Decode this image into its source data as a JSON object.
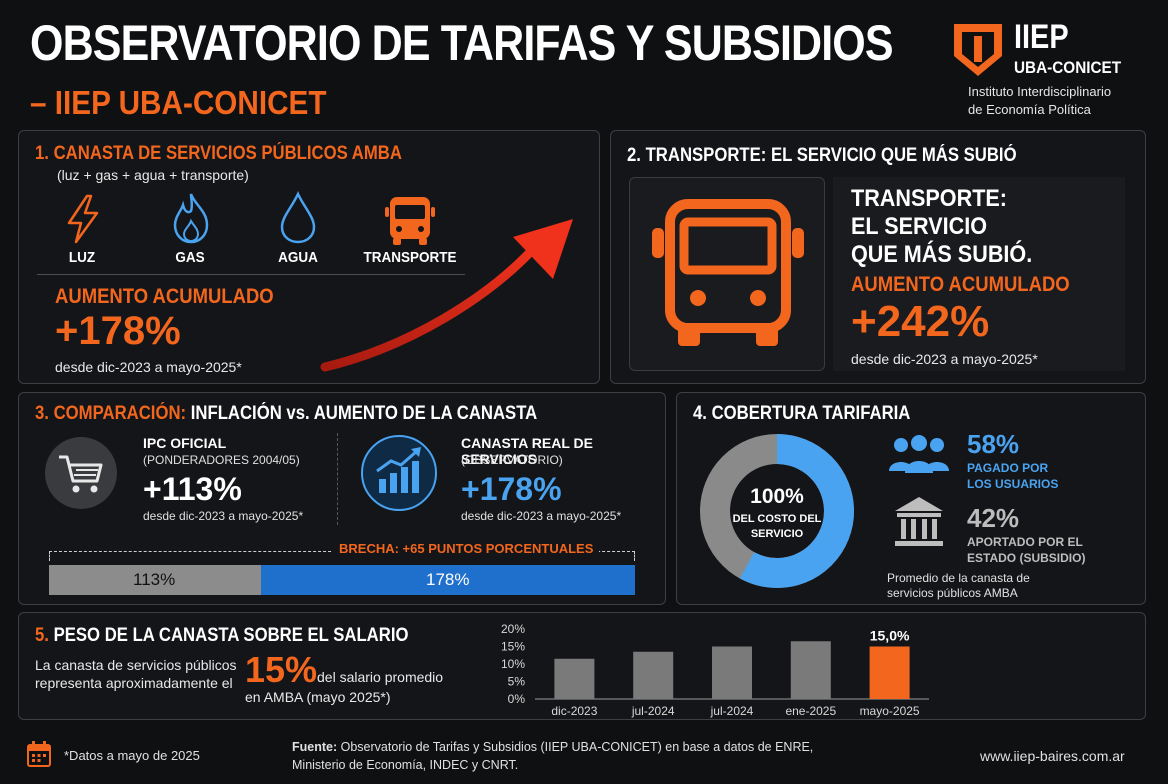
{
  "header": {
    "title": "OBSERVATORIO DE TARIFAS Y SUBSIDIOS",
    "subtitle": "– IIEP UBA-CONICET",
    "logo_name": "IIEP",
    "logo_sub": "UBA-CONICET",
    "logo_desc_line1": "Instituto Interdisciplinario",
    "logo_desc_line2": "de Economía Política"
  },
  "panel1": {
    "title": "1. CANASTA DE SERVICIOS PÚBLICOS AMBA",
    "subtitle": "(luz + gas + agua + transporte)",
    "items": [
      {
        "label": "LUZ",
        "icon": "lightning-icon"
      },
      {
        "label": "GAS",
        "icon": "flame-icon"
      },
      {
        "label": "AGUA",
        "icon": "water-drop-icon"
      },
      {
        "label": "TRANSPORTE",
        "icon": "bus-icon"
      }
    ],
    "metric_label": "AUMENTO ACUMULADO",
    "metric_value": "+178%",
    "metric_note": "desde dic-2023 a mayo-2025*"
  },
  "panel2": {
    "title": "2. TRANSPORTE: EL SERVICIO QUE MÁS SUBIÓ",
    "heading_line1": "TRANSPORTE:",
    "heading_line2": "EL SERVICIO",
    "heading_line3": "QUE MÁS SUBIÓ.",
    "metric_label": "AUMENTO ACUMULADO",
    "metric_value": "+242%",
    "metric_note": "desde dic-2023 a mayo-2025*"
  },
  "panel3": {
    "title_prefix": "3. COMPARACIÓN:",
    "title_rest": "INFLACIÓN vs. AUMENTO DE LA CANASTA",
    "left_label": "IPC OFICIAL",
    "left_sub": "(PONDERADORES 2004/05)",
    "left_value": "+113%",
    "left_note": "desde dic-2023 a mayo-2025*",
    "right_label": "CANASTA REAL DE SERVICIOS",
    "right_sub": "(OBSERVATORIO)",
    "right_value": "+178%",
    "right_note": "desde dic-2023 a mayo-2025*",
    "gap_label": "BRECHA: +65 PUNTOS PORCENTUALES",
    "bar_left_label": "113%",
    "bar_right_label": "178%",
    "bar_left_value": 113,
    "bar_right_value": 178
  },
  "panel4": {
    "title": "4. COBERTURA TARIFARIA",
    "donut_center_value": "100%",
    "donut_center_line1": "DEL COSTO DEL",
    "donut_center_line2": "SERVICIO",
    "users_pct": "58%",
    "users_label_line1": "PAGADO POR",
    "users_label_line2": "LOS USUARIOS",
    "state_pct": "42%",
    "state_label_line1": "APORTADO POR EL",
    "state_label_line2": "ESTADO (SUBSIDIO)",
    "note_line1": "Promedio de la canasta de",
    "note_line2": "servicios públicos AMBA",
    "users_share": 58,
    "state_share": 42
  },
  "panel5": {
    "title": "5. PESO DE LA CANASTA SOBRE EL SALARIO",
    "text_line1": "La canasta de servicios públicos",
    "text_line2": "representa aproximadamente el",
    "big_value": "15%",
    "text_after": "del salario promedio",
    "text_after2": "en AMBA (mayo 2025*)"
  },
  "chart_data": {
    "type": "bar",
    "categories": [
      "dic-2023",
      "jul-2024",
      "jul-2024",
      "ene-2025",
      "mayo-2025"
    ],
    "values": [
      11.5,
      13.5,
      15.0,
      16.5,
      15.0
    ],
    "ylim": [
      0,
      20
    ],
    "yticks": [
      "0%",
      "5%",
      "10%",
      "15%",
      "20%"
    ],
    "highlight_label": "15,0%",
    "colors": {
      "default": "#7a7a7a",
      "highlight": "#f2661e"
    }
  },
  "footer": {
    "note": "*Datos a mayo de 2025",
    "source_label": "Fuente:",
    "source_line1": "Observatorio de Tarifas y Subsidios (IIEP UBA-CONICET) en base a datos de ENRE,",
    "source_line2": "Ministerio de Economía, INDEC y CNRT.",
    "url": "www.iiep-baires.com.ar"
  },
  "colors": {
    "orange": "#f2661e",
    "blue": "#4aa3f0",
    "grey": "#8a8a8a",
    "red_arrow": "#e8301c"
  }
}
